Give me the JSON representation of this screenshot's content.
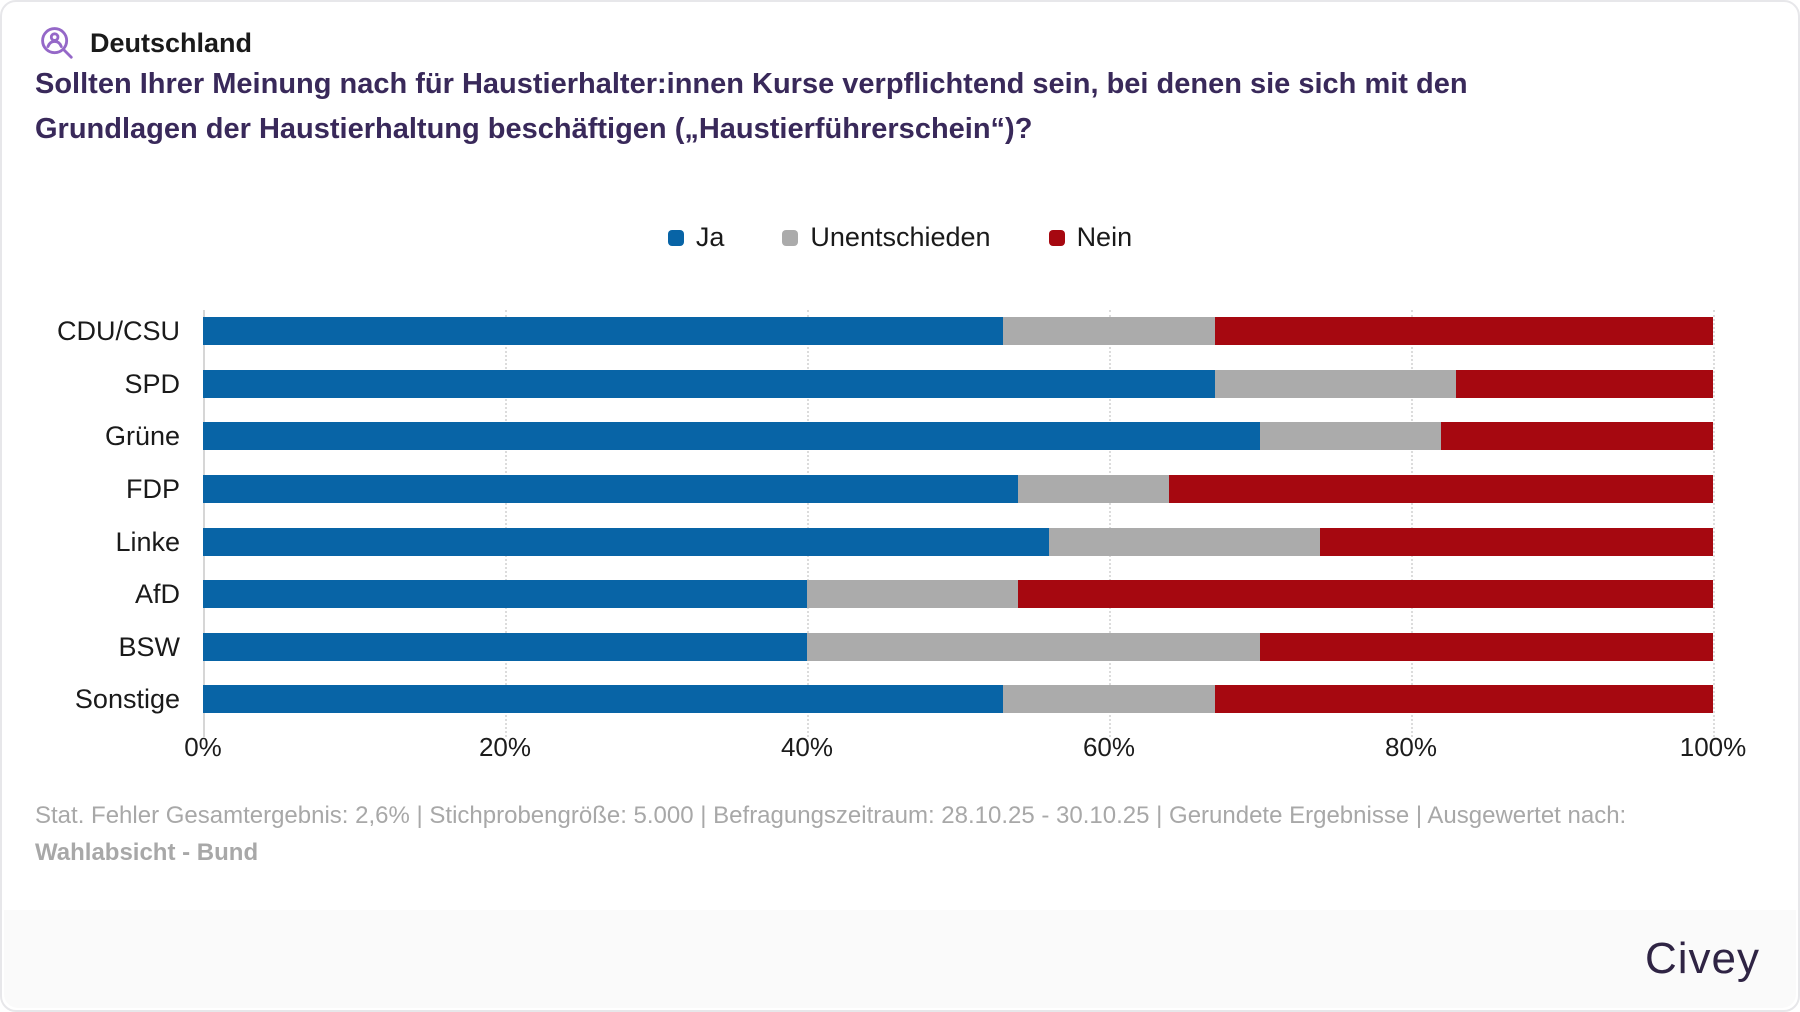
{
  "header": {
    "region": "Deutschland",
    "question": "Sollten Ihrer Meinung nach für Haustierhalter:innen Kurse verpflichtend sein, bei denen sie sich mit den Grundlagen der Haustierhaltung beschäftigen („Haustierführerschein“)?"
  },
  "chart_data": {
    "type": "bar",
    "stacked": true,
    "orientation": "horizontal",
    "categories": [
      "CDU/CSU",
      "SPD",
      "Grüne",
      "FDP",
      "Linke",
      "AfD",
      "BSW",
      "Sonstige"
    ],
    "series": [
      {
        "name": "Ja",
        "color": "#0864a6",
        "values": [
          53,
          67,
          70,
          54,
          56,
          40,
          40,
          53
        ]
      },
      {
        "name": "Unentschieden",
        "color": "#ababab",
        "values": [
          14,
          16,
          12,
          10,
          18,
          14,
          30,
          14
        ]
      },
      {
        "name": "Nein",
        "color": "#a60810",
        "values": [
          33,
          17,
          18,
          36,
          26,
          46,
          30,
          33
        ]
      }
    ],
    "x_ticks": [
      "0%",
      "20%",
      "40%",
      "60%",
      "80%",
      "100%"
    ],
    "xlim": [
      0,
      100
    ],
    "xlabel": "",
    "ylabel": "",
    "legend_position": "top-center",
    "grid": "vertical-dotted"
  },
  "footnote": {
    "text_prefix": "Stat. Fehler Gesamtergebnis: 2,6% | Stichprobengröße: 5.000 | Befragungszeitraum: 28.10.25 - 30.10.25 | Gerundete Ergebnisse | Ausgewertet nach: ",
    "emphasis": "Wahlabsicht - Bund"
  },
  "footer": {
    "logo": "Civey"
  },
  "icons": {
    "header_icon": "person-search-icon"
  },
  "colors": {
    "question_text": "#39295a",
    "icon_purple": "#9568c8",
    "logo_purple": "#2f2444",
    "footnote_gray": "#a8a8a8",
    "footer_band": "#fafafa"
  }
}
